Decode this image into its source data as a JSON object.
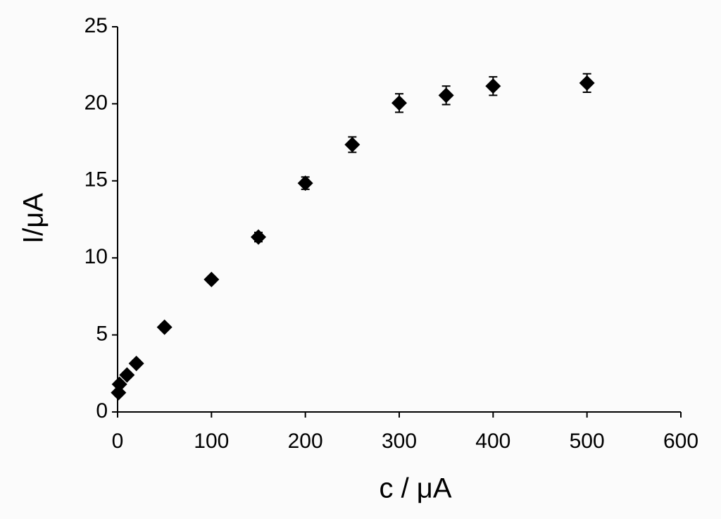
{
  "chart_data": {
    "type": "scatter",
    "x_label": "c / μA",
    "y_label": "I/μA",
    "x": [
      1,
      2,
      10,
      20,
      50,
      100,
      150,
      200,
      250,
      300,
      350,
      400,
      500
    ],
    "values": [
      1.25,
      1.8,
      2.4,
      3.15,
      5.5,
      8.6,
      11.35,
      14.85,
      17.35,
      20.05,
      20.55,
      21.15,
      21.35
    ],
    "errors": [
      0.2,
      0.2,
      0.2,
      0.2,
      0.2,
      0.2,
      0.3,
      0.4,
      0.5,
      0.6,
      0.6,
      0.6,
      0.6
    ],
    "color": "#000000",
    "xlim": [
      0,
      600
    ],
    "xticks": [
      0,
      100,
      200,
      300,
      400,
      500,
      600
    ],
    "ylim": [
      0,
      25
    ],
    "yticks": [
      0,
      5,
      10,
      15,
      20,
      25
    ]
  }
}
